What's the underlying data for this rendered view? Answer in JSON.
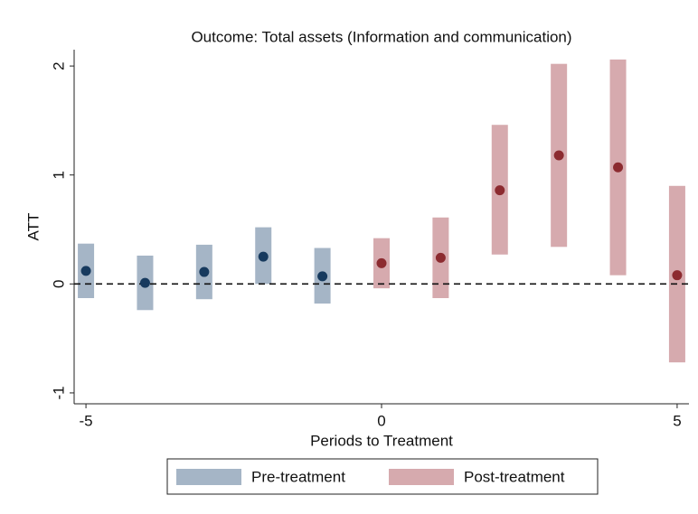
{
  "chart_data": {
    "type": "errorpoint",
    "title": "Outcome: Total assets (Information and communication)",
    "xlabel": "Periods to Treatment",
    "ylabel": "ATT",
    "xlim": [
      -5.2,
      5.2
    ],
    "ylim": [
      -1.1,
      2.15
    ],
    "xticks": [
      -5,
      0,
      5
    ],
    "yticks": [
      -1,
      0,
      1,
      2
    ],
    "hline": 0,
    "series": [
      {
        "name": "Pre-treatment",
        "color": "#a5b5c6",
        "marker_color": "#173a5e",
        "x": [
          -5,
          -4,
          -3,
          -2,
          -1
        ],
        "values": [
          0.12,
          0.01,
          0.11,
          0.25,
          0.07
        ],
        "lower": [
          -0.13,
          -0.24,
          -0.14,
          0.0,
          -0.18
        ],
        "upper": [
          0.37,
          0.26,
          0.36,
          0.52,
          0.33
        ]
      },
      {
        "name": "Post-treatment",
        "color": "#d6aaae",
        "marker_color": "#8c2b30",
        "x": [
          0,
          1,
          2,
          3,
          4,
          5
        ],
        "values": [
          0.19,
          0.24,
          0.86,
          1.18,
          1.07,
          0.08
        ],
        "lower": [
          -0.04,
          -0.13,
          0.27,
          0.34,
          0.08,
          -0.72
        ],
        "upper": [
          0.42,
          0.61,
          1.46,
          2.02,
          2.06,
          0.9
        ]
      }
    ]
  }
}
